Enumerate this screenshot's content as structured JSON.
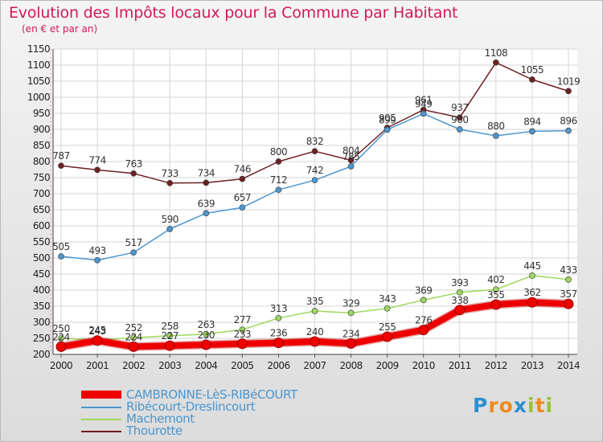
{
  "title": "Evolution des Impôts locaux pour la Commune par Habitant",
  "subtitle": "(en € et par an)",
  "logo": {
    "letters": [
      "P",
      "r",
      "o",
      "x",
      "i",
      "t",
      "i"
    ],
    "colors": [
      "#2f8fd1",
      "#ee8a1f",
      "#ee8a1f",
      "#2f8fd1",
      "#99c23a",
      "#ee8a1f",
      "#99c23a"
    ]
  },
  "chart_data": {
    "type": "line",
    "title": "Evolution des Impôts locaux pour la Commune par Habitant",
    "subtitle": "(en € et par an)",
    "x": [
      2000,
      2001,
      2002,
      2003,
      2004,
      2005,
      2006,
      2007,
      2008,
      2009,
      2010,
      2011,
      2012,
      2013,
      2014
    ],
    "ylim": [
      200,
      1150
    ],
    "yticks": [
      200,
      250,
      300,
      350,
      400,
      450,
      500,
      550,
      600,
      650,
      700,
      750,
      800,
      850,
      900,
      950,
      1000,
      1050,
      1100,
      1150
    ],
    "grid": true,
    "legend_position": "bottom-left",
    "series": [
      {
        "name": "Thourotte",
        "color": "#6e1f22",
        "values": [
          787,
          774,
          763,
          733,
          734,
          746,
          800,
          832,
          804,
          905,
          961,
          937,
          1108,
          1055,
          1019
        ]
      },
      {
        "name": "Ribécourt-Dreslincourt",
        "color": "#4d97cf",
        "values": [
          505,
          493,
          517,
          590,
          639,
          657,
          712,
          742,
          785,
          899,
          949,
          900,
          880,
          894,
          896
        ]
      },
      {
        "name": "Machemont",
        "color": "#9ed85e",
        "values": [
          250,
          245,
          252,
          258,
          263,
          277,
          313,
          335,
          329,
          343,
          369,
          393,
          402,
          445,
          433
        ]
      },
      {
        "name": "CAMBRONNE-LèS-RIBéCOURT",
        "color": "#ee0000",
        "values": [
          224,
          243,
          224,
          227,
          230,
          233,
          236,
          240,
          234,
          255,
          276,
          338,
          355,
          362,
          357
        ]
      }
    ],
    "legend": [
      "CAMBRONNE-LèS-RIBéCOURT",
      "Ribécourt-Dreslincourt",
      "Machemont",
      "Thourotte"
    ]
  }
}
